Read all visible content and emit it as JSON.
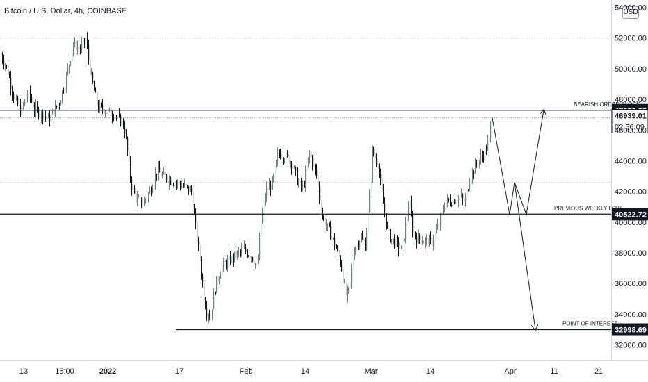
{
  "header": {
    "title": "Bitcoin / U.S. Dollar, 4h, COINBASE",
    "currency_button": "USD"
  },
  "chart_data": {
    "type": "candlestick",
    "title": "Bitcoin / U.S. Dollar, 4h, COINBASE",
    "ylim": [
      31000,
      54500
    ],
    "y_ticks": [
      32000,
      34000,
      36000,
      38000,
      40000,
      42000,
      44000,
      46000,
      48000,
      50000,
      52000,
      54000
    ],
    "y_tick_labels": [
      "32000.00",
      "34000.00",
      "36000.00",
      "38000.00",
      "40000.00",
      "42000.00",
      "44000.00",
      "46000.00",
      "48000.00",
      "50000.00",
      "52000.00",
      "54000.00"
    ],
    "x_ticks": [
      "13",
      "15:00",
      "2022",
      "17",
      "Feb",
      "14",
      "Mar",
      "14",
      "Apr",
      "11",
      "21"
    ],
    "price_path": [
      [
        0,
        51000
      ],
      [
        10,
        50000
      ],
      [
        20,
        48000
      ],
      [
        30,
        47200
      ],
      [
        40,
        48500
      ],
      [
        50,
        47300
      ],
      [
        60,
        47000
      ],
      [
        70,
        46700
      ],
      [
        85,
        47800
      ],
      [
        95,
        49500
      ],
      [
        105,
        51600
      ],
      [
        115,
        51300
      ],
      [
        123,
        52000
      ],
      [
        130,
        49600
      ],
      [
        140,
        47500
      ],
      [
        155,
        47200
      ],
      [
        165,
        47000
      ],
      [
        178,
        46300
      ],
      [
        182,
        45000
      ],
      [
        188,
        42500
      ],
      [
        195,
        41500
      ],
      [
        205,
        41200
      ],
      [
        215,
        42000
      ],
      [
        225,
        43300
      ],
      [
        235,
        43000
      ],
      [
        250,
        42600
      ],
      [
        265,
        42300
      ],
      [
        275,
        42000
      ],
      [
        280,
        40000
      ],
      [
        287,
        37500
      ],
      [
        293,
        35200
      ],
      [
        297,
        34200
      ],
      [
        303,
        34000
      ],
      [
        310,
        36000
      ],
      [
        320,
        37200
      ],
      [
        335,
        37700
      ],
      [
        350,
        38200
      ],
      [
        362,
        37800
      ],
      [
        370,
        37000
      ],
      [
        375,
        40000
      ],
      [
        382,
        42000
      ],
      [
        392,
        42600
      ],
      [
        400,
        44500
      ],
      [
        410,
        44300
      ],
      [
        420,
        43800
      ],
      [
        428,
        42600
      ],
      [
        435,
        42200
      ],
      [
        445,
        44500
      ],
      [
        455,
        43000
      ],
      [
        462,
        40500
      ],
      [
        470,
        39700
      ],
      [
        480,
        38700
      ],
      [
        490,
        37300
      ],
      [
        497,
        35200
      ],
      [
        502,
        35500
      ],
      [
        508,
        38200
      ],
      [
        518,
        39000
      ],
      [
        525,
        38500
      ],
      [
        530,
        41000
      ],
      [
        535,
        44600
      ],
      [
        543,
        43800
      ],
      [
        550,
        41500
      ],
      [
        558,
        39200
      ],
      [
        568,
        38600
      ],
      [
        578,
        38200
      ],
      [
        588,
        41500
      ],
      [
        593,
        39500
      ],
      [
        600,
        38900
      ],
      [
        610,
        38800
      ],
      [
        620,
        38600
      ],
      [
        630,
        39800
      ],
      [
        640,
        41300
      ],
      [
        650,
        41400
      ],
      [
        660,
        41700
      ],
      [
        668,
        41300
      ],
      [
        675,
        42800
      ],
      [
        685,
        43800
      ],
      [
        695,
        44400
      ],
      [
        703,
        45300
      ],
      [
        707,
        47400
      ]
    ],
    "levels": [
      {
        "name": "BEARISH ORDER BLOCK",
        "price": 47290.63,
        "price_label": "47290.63"
      },
      {
        "name": "PREVIOUS WEEKLY LOW",
        "price": 40522.72,
        "price_label": "40522.72"
      },
      {
        "name": "POINT OF INTEREST",
        "price": 32998.69,
        "price_label": "32998.69"
      }
    ],
    "current_price": {
      "value": 46939.01,
      "label": "46939.01",
      "countdown": "02:56:09"
    },
    "dotted_lines": [
      52000,
      42600,
      46800
    ],
    "annotations": {
      "bull_path": [
        [
          708,
          46800
        ],
        [
          733,
          40500
        ],
        [
          740,
          42600
        ],
        [
          757,
          40500
        ],
        [
          782,
          47300
        ]
      ],
      "bear_path": [
        [
          740,
          42600
        ],
        [
          770,
          33000
        ]
      ]
    },
    "colors": {
      "up": "#26a69a",
      "down": "#131722",
      "line": "#131722",
      "dotted_red": "#ef5350",
      "grid": "#c8c8c8"
    }
  }
}
